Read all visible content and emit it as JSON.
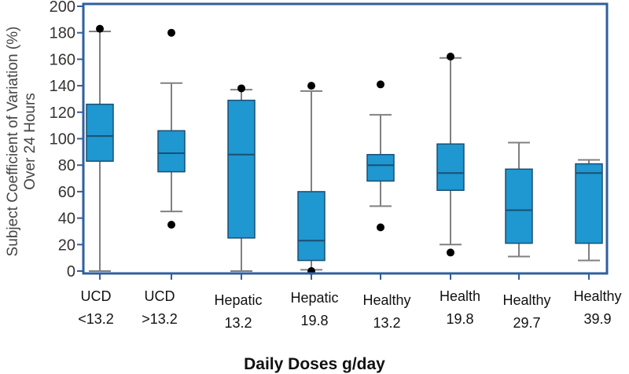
{
  "chart_data": {
    "type": "box",
    "title": "",
    "xlabel": "Daily Doses g/day",
    "ylabel_lines": [
      "Subject Coefficient of Variation (%)",
      "Over 24 Hours"
    ],
    "ylim": [
      0,
      200
    ],
    "yticks": [
      0,
      20,
      40,
      60,
      80,
      100,
      120,
      140,
      160,
      180,
      200
    ],
    "grid": false,
    "colors": {
      "box": "#1f97d0",
      "box_edge": "#1b4f72",
      "whisker": "#808080",
      "frame": "#2f5f9e",
      "outlier": "#000000"
    },
    "categories": [
      {
        "line1": "UCD",
        "line2": "<13.2",
        "whisker_low": 0,
        "q1": 83,
        "median": 102,
        "q3": 126,
        "whisker_high": 181,
        "outliers": [
          183
        ]
      },
      {
        "line1": "UCD",
        "line2": ">13.2",
        "whisker_low": 45,
        "q1": 75,
        "median": 89,
        "q3": 106,
        "whisker_high": 142,
        "outliers": [
          180,
          35
        ]
      },
      {
        "line1": "Hepatic",
        "line2": "13.2",
        "whisker_low": 0,
        "q1": 25,
        "median": 88,
        "q3": 129,
        "whisker_high": 137,
        "outliers": [
          138
        ]
      },
      {
        "line1": "Hepatic",
        "line2": "19.8",
        "whisker_low": 1,
        "q1": 8,
        "median": 23,
        "q3": 60,
        "whisker_high": 136,
        "outliers": [
          140,
          0
        ]
      },
      {
        "line1": "Healthy",
        "line2": "13.2",
        "whisker_low": 49,
        "q1": 68,
        "median": 80,
        "q3": 88,
        "whisker_high": 118,
        "outliers": [
          141,
          33
        ]
      },
      {
        "line1": "Health",
        "line2": "19.8",
        "whisker_low": 20,
        "q1": 61,
        "median": 74,
        "q3": 96,
        "whisker_high": 161,
        "outliers": [
          162,
          14
        ]
      },
      {
        "line1": "Healthy",
        "line2": "29.7",
        "whisker_low": 11,
        "q1": 21,
        "median": 46,
        "q3": 77,
        "whisker_high": 97,
        "outliers": []
      },
      {
        "line1": "Healthy",
        "line2": "39.9",
        "whisker_low": 8,
        "q1": 21,
        "median": 74,
        "q3": 81,
        "whisker_high": 84,
        "outliers": []
      }
    ]
  }
}
